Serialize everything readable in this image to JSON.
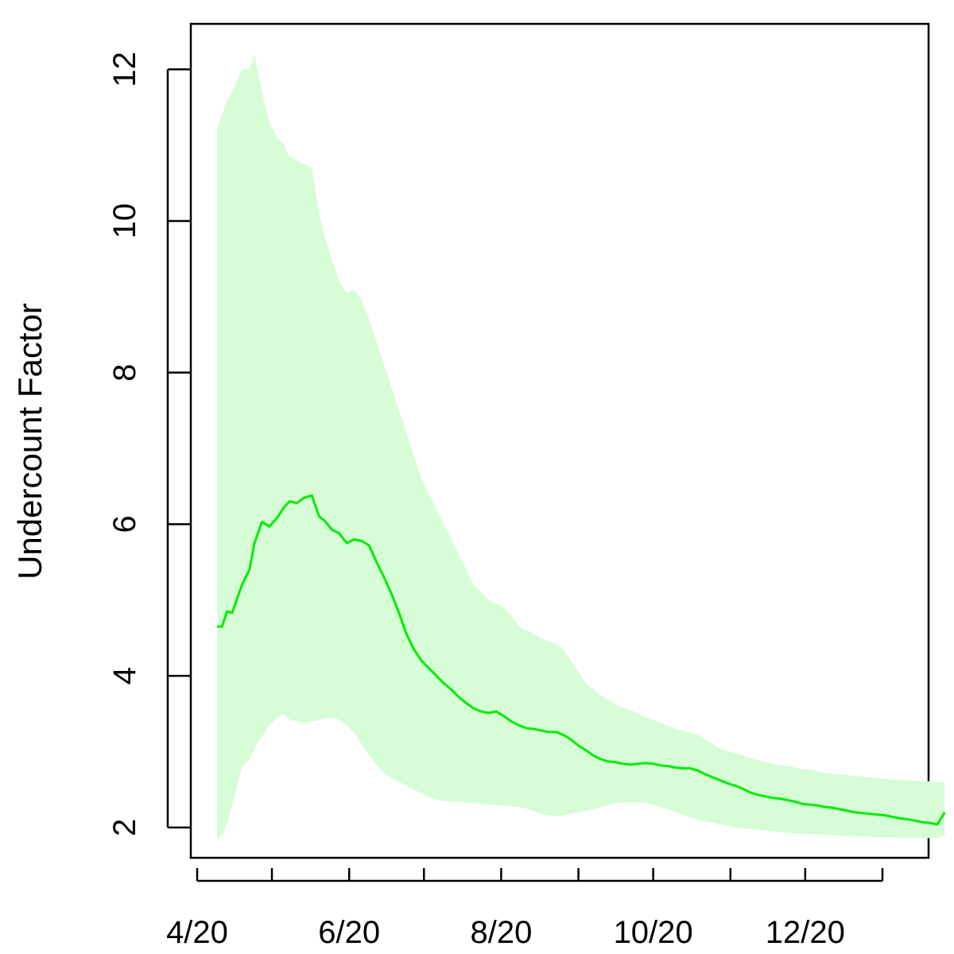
{
  "chart_data": {
    "type": "area",
    "title": "",
    "xlabel": "",
    "ylabel": "Undercount Factor",
    "xlim": [
      "2020-04-01",
      "2021-01-31"
    ],
    "ylim": [
      1.6,
      12.6
    ],
    "grid": false,
    "legend": "none",
    "x_ticks": [
      {
        "date": "2020-04-01",
        "label": "4/20"
      },
      {
        "date": "2020-05-01",
        "label": ""
      },
      {
        "date": "2020-06-01",
        "label": "6/20"
      },
      {
        "date": "2020-07-01",
        "label": ""
      },
      {
        "date": "2020-08-01",
        "label": "8/20"
      },
      {
        "date": "2020-09-01",
        "label": ""
      },
      {
        "date": "2020-10-01",
        "label": "10/20"
      },
      {
        "date": "2020-11-01",
        "label": ""
      },
      {
        "date": "2020-12-01",
        "label": "12/20"
      },
      {
        "date": "2021-01-01",
        "label": ""
      }
    ],
    "y_ticks": [
      2,
      4,
      6,
      8,
      10,
      12
    ],
    "colors": {
      "line": "#00ee00",
      "band": "#d6fdd6"
    },
    "series": [
      {
        "x": [
          "2020-04-09",
          "2020-04-11",
          "2020-04-13",
          "2020-04-15",
          "2020-04-19",
          "2020-04-22",
          "2020-04-24",
          "2020-04-27",
          "2020-04-30",
          "2020-05-03",
          "2020-05-06",
          "2020-05-08",
          "2020-05-11",
          "2020-05-14",
          "2020-05-17",
          "2020-05-20",
          "2020-05-22",
          "2020-05-25",
          "2020-05-28",
          "2020-05-31",
          "2020-06-03",
          "2020-06-06",
          "2020-06-09",
          "2020-06-12",
          "2020-06-15",
          "2020-06-18",
          "2020-06-21",
          "2020-06-24",
          "2020-06-27",
          "2020-06-30",
          "2020-07-03",
          "2020-07-06",
          "2020-07-09",
          "2020-07-12",
          "2020-07-15",
          "2020-07-18",
          "2020-07-21",
          "2020-07-24",
          "2020-07-27",
          "2020-07-30",
          "2020-08-02",
          "2020-08-05",
          "2020-08-08",
          "2020-08-11",
          "2020-08-14",
          "2020-08-17",
          "2020-08-20",
          "2020-08-23",
          "2020-08-26",
          "2020-08-29",
          "2020-09-01",
          "2020-09-04",
          "2020-09-07",
          "2020-09-10",
          "2020-09-13",
          "2020-09-16",
          "2020-09-19",
          "2020-09-22",
          "2020-09-25",
          "2020-09-28",
          "2020-10-01",
          "2020-10-04",
          "2020-10-07",
          "2020-10-10",
          "2020-10-13",
          "2020-10-16",
          "2020-10-19",
          "2020-10-22",
          "2020-10-25",
          "2020-10-28",
          "2020-10-31",
          "2020-11-03",
          "2020-11-06",
          "2020-11-09",
          "2020-11-12",
          "2020-11-15",
          "2020-11-18",
          "2020-11-21",
          "2020-11-24",
          "2020-11-27",
          "2020-11-30",
          "2020-12-03",
          "2020-12-06",
          "2020-12-09",
          "2020-12-12",
          "2020-12-15",
          "2020-12-18",
          "2020-12-21",
          "2020-12-24",
          "2020-12-27",
          "2020-12-30",
          "2021-01-02",
          "2021-01-05",
          "2021-01-08",
          "2021-01-11",
          "2021-01-14",
          "2021-01-17",
          "2021-01-20",
          "2021-01-23",
          "2021-01-26"
        ],
        "y": [
          4.65,
          4.65,
          4.85,
          4.83,
          5.2,
          5.4,
          5.75,
          6.03,
          5.97,
          6.08,
          6.23,
          6.3,
          6.28,
          6.35,
          6.38,
          6.1,
          6.05,
          5.93,
          5.88,
          5.75,
          5.8,
          5.78,
          5.72,
          5.5,
          5.3,
          5.08,
          4.83,
          4.55,
          4.35,
          4.2,
          4.1,
          4.0,
          3.9,
          3.82,
          3.72,
          3.64,
          3.57,
          3.53,
          3.51,
          3.53,
          3.47,
          3.4,
          3.35,
          3.31,
          3.3,
          3.28,
          3.26,
          3.26,
          3.22,
          3.16,
          3.08,
          3.02,
          2.95,
          2.9,
          2.87,
          2.86,
          2.84,
          2.83,
          2.84,
          2.85,
          2.84,
          2.82,
          2.81,
          2.79,
          2.78,
          2.78,
          2.75,
          2.7,
          2.66,
          2.62,
          2.58,
          2.55,
          2.51,
          2.46,
          2.43,
          2.41,
          2.39,
          2.38,
          2.36,
          2.34,
          2.31,
          2.3,
          2.29,
          2.27,
          2.26,
          2.24,
          2.22,
          2.2,
          2.19,
          2.18,
          2.17,
          2.16,
          2.14,
          2.12,
          2.11,
          2.09,
          2.07,
          2.06,
          2.04,
          2.2
        ],
        "lower": [
          1.85,
          1.9,
          2.05,
          2.3,
          2.8,
          2.9,
          3.05,
          3.2,
          3.35,
          3.45,
          3.5,
          3.42,
          3.4,
          3.38,
          3.4,
          3.42,
          3.44,
          3.45,
          3.42,
          3.35,
          3.25,
          3.1,
          2.95,
          2.82,
          2.72,
          2.65,
          2.6,
          2.55,
          2.5,
          2.45,
          2.4,
          2.37,
          2.35,
          2.34,
          2.34,
          2.33,
          2.32,
          2.31,
          2.3,
          2.3,
          2.29,
          2.28,
          2.27,
          2.25,
          2.22,
          2.18,
          2.16,
          2.15,
          2.16,
          2.18,
          2.2,
          2.22,
          2.24,
          2.27,
          2.3,
          2.32,
          2.33,
          2.33,
          2.33,
          2.32,
          2.3,
          2.27,
          2.24,
          2.2,
          2.17,
          2.13,
          2.1,
          2.08,
          2.06,
          2.04,
          2.02,
          2.0,
          1.99,
          1.98,
          1.97,
          1.96,
          1.95,
          1.94,
          1.93,
          1.92,
          1.92,
          1.91,
          1.91,
          1.9,
          1.9,
          1.89,
          1.89,
          1.88,
          1.88,
          1.88,
          1.87,
          1.87,
          1.87,
          1.86,
          1.86,
          1.86,
          1.86,
          1.86,
          1.86,
          1.9
        ],
        "upper": [
          11.2,
          11.4,
          11.6,
          11.7,
          12.0,
          12.0,
          12.2,
          11.7,
          11.3,
          11.1,
          11.0,
          10.85,
          10.8,
          10.75,
          10.7,
          10.1,
          9.8,
          9.5,
          9.2,
          9.05,
          9.1,
          8.95,
          8.7,
          8.4,
          8.1,
          7.8,
          7.5,
          7.2,
          6.9,
          6.6,
          6.4,
          6.2,
          6.0,
          5.8,
          5.6,
          5.4,
          5.2,
          5.1,
          5.0,
          4.95,
          4.9,
          4.8,
          4.65,
          4.6,
          4.55,
          4.5,
          4.45,
          4.42,
          4.35,
          4.2,
          4.05,
          3.9,
          3.82,
          3.74,
          3.68,
          3.62,
          3.58,
          3.55,
          3.5,
          3.45,
          3.42,
          3.38,
          3.34,
          3.3,
          3.28,
          3.25,
          3.22,
          3.15,
          3.1,
          3.04,
          3.0,
          2.98,
          2.95,
          2.92,
          2.89,
          2.86,
          2.84,
          2.82,
          2.81,
          2.79,
          2.77,
          2.76,
          2.74,
          2.72,
          2.71,
          2.7,
          2.69,
          2.68,
          2.67,
          2.66,
          2.65,
          2.64,
          2.63,
          2.63,
          2.62,
          2.62,
          2.61,
          2.61,
          2.6,
          2.6
        ]
      }
    ]
  }
}
